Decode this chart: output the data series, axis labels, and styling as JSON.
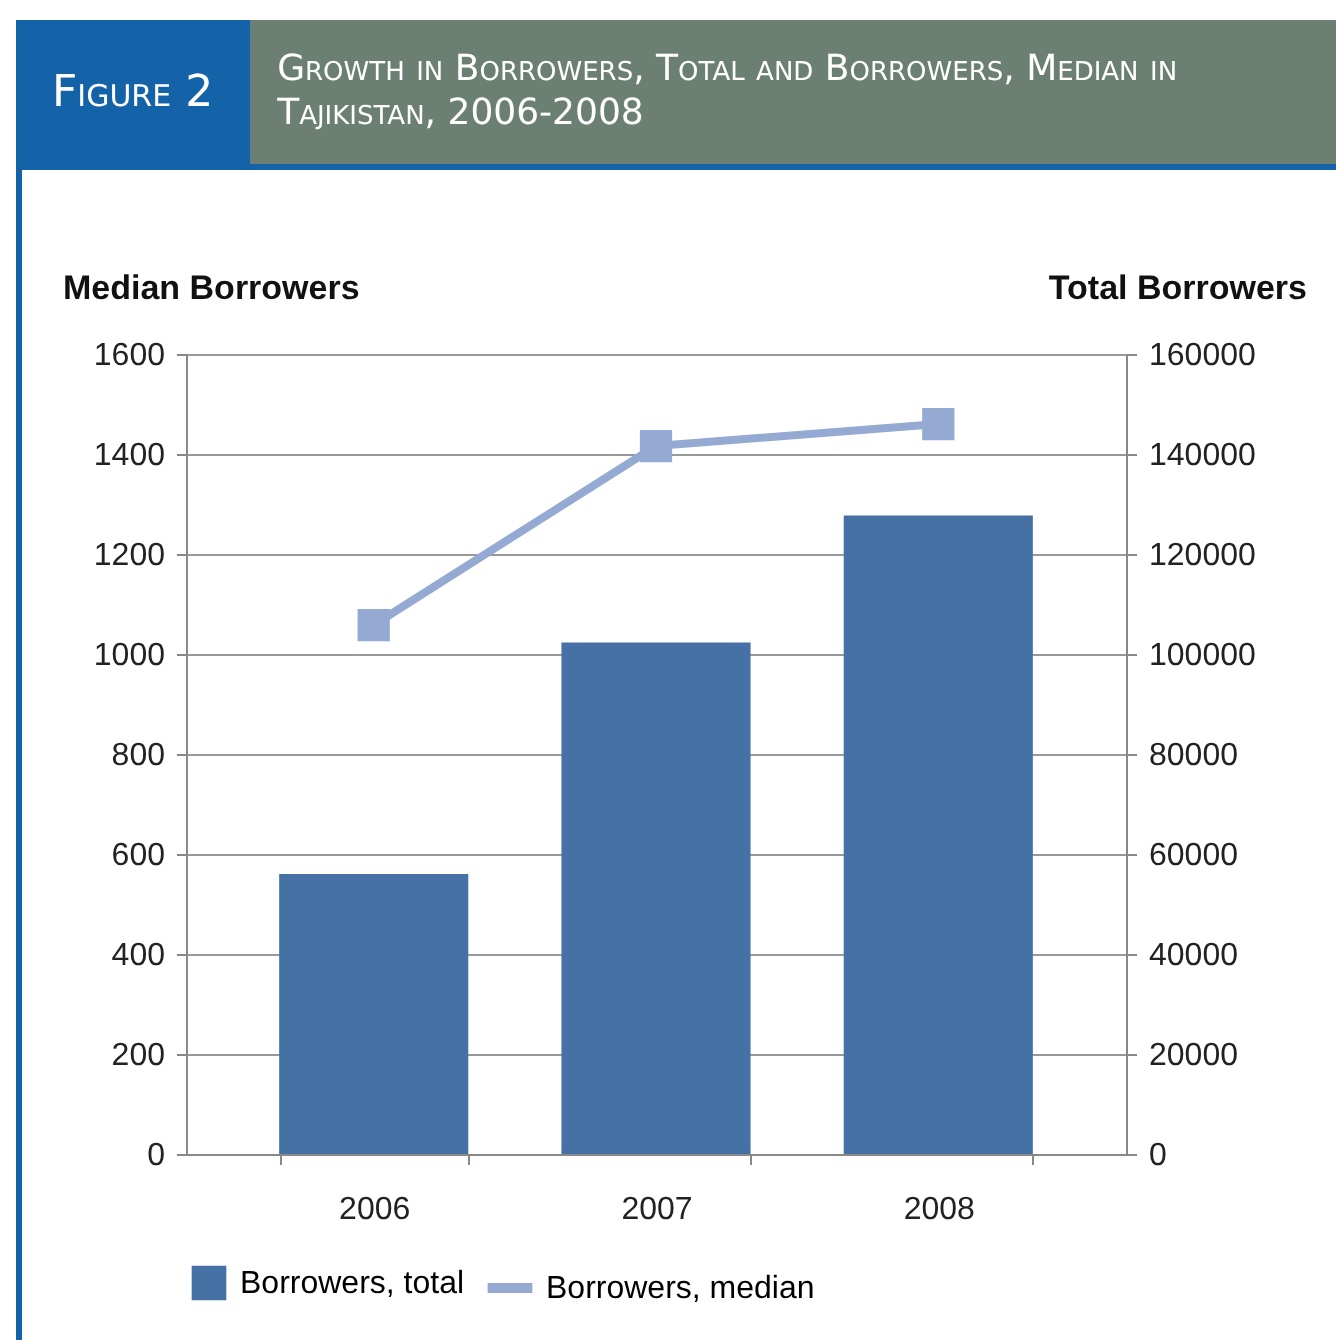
{
  "chart_data": {
    "type": "bar",
    "title": "Growth in Borrowers, Total and Borrowers, Median in Tajikistan, 2006-2008",
    "annotations": [
      "Figure 2"
    ],
    "ylabel": "Median Borrowers",
    "y2label": "Total Borrowers",
    "categories": [
      "2006",
      "2007",
      "2008"
    ],
    "series": [
      {
        "name": "Borrowers, total",
        "axis": "y2",
        "color": "#4571a4",
        "values": [
          56000,
          102300,
          127700
        ]
      },
      {
        "name": "Borrowers, median",
        "type": "line",
        "color": "#94aad3",
        "values": [
          1058,
          1416,
          1460
        ]
      }
    ],
    "ylim": [
      0,
      1600
    ],
    "yticks": [
      0,
      200,
      400,
      600,
      800,
      1000,
      1200,
      1400,
      1600
    ],
    "y2lim": [
      0,
      160000
    ],
    "y2ticks": [
      0,
      20000,
      40000,
      60000,
      80000,
      100000,
      120000,
      140000,
      160000
    ],
    "grid": "y",
    "legend": "bottom",
    "marker": "square"
  }
}
